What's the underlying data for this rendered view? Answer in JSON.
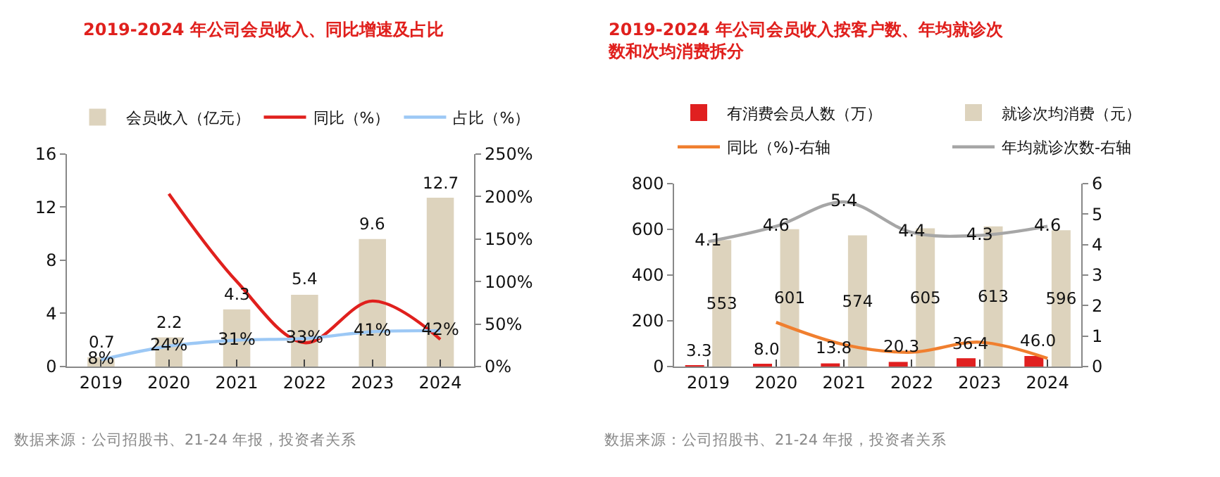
{
  "chart_data": [
    {
      "type": "bar",
      "title": "2019-2024 年公司会员收入、同比增速及占比",
      "categories": [
        "2019",
        "2020",
        "2021",
        "2022",
        "2023",
        "2024"
      ],
      "legend": "top",
      "marker": "none",
      "ylim": [
        0,
        16
      ],
      "yticks": [
        0,
        4,
        8,
        12,
        16
      ],
      "y2lim": [
        0,
        250
      ],
      "y2ticks": [
        {
          "value": 0,
          "label": "0%"
        },
        {
          "value": 50,
          "label": "50%"
        },
        {
          "value": 100,
          "label": "100%"
        },
        {
          "value": 150,
          "label": "150%"
        },
        {
          "value": 200,
          "label": "200%"
        },
        {
          "value": 250,
          "label": "250%"
        }
      ],
      "series": [
        {
          "name": "会员收入（亿元）",
          "color": "#ddd3bd",
          "values": [
            0.7,
            2.2,
            4.3,
            5.4,
            9.6,
            12.7
          ],
          "value_labels": [
            "0.7",
            "2.2",
            "4.3",
            "5.4",
            "9.6",
            "12.7"
          ]
        },
        {
          "name": "同比（%）",
          "type": "line",
          "axis": "y2",
          "color": "#e0201d",
          "values": [
            null,
            203,
            100,
            28,
            77,
            32
          ]
        },
        {
          "name": "占比（%）",
          "type": "line",
          "axis": "y2",
          "color": "#9cc8f5",
          "values": [
            8,
            24,
            31,
            33,
            41,
            42
          ],
          "value_labels": [
            "8%",
            "24%",
            "31%",
            "33%",
            "41%",
            "42%"
          ]
        }
      ],
      "annotations": [
        "数据来源：公司招股书、21-24 年报，投资者关系"
      ]
    },
    {
      "type": "bar",
      "title": "2019-2024 年公司会员收入按客户数、年均就诊次数和次均消费拆分",
      "categories": [
        "2019",
        "2020",
        "2021",
        "2022",
        "2023",
        "2024"
      ],
      "legend": "top",
      "marker": "none",
      "ylim": [
        0,
        800
      ],
      "yticks": [
        0,
        200,
        400,
        600,
        800
      ],
      "y2lim": [
        0,
        6
      ],
      "y2ticks": [
        0,
        1,
        2,
        3,
        4,
        5,
        6
      ],
      "series": [
        {
          "name": "有消费会员人数（万）",
          "color": "#e02020",
          "values": [
            3.3,
            8.0,
            13.8,
            20.3,
            36.4,
            46.0
          ],
          "value_labels": [
            "3.3",
            "8.0",
            "13.8",
            "20.3",
            "36.4",
            "46.0"
          ]
        },
        {
          "name": "就诊次均消费（元）",
          "color": "#ddd3bd",
          "values": [
            553,
            601,
            574,
            605,
            613,
            596
          ],
          "value_labels": [
            "553",
            "601",
            "574",
            "605",
            "613",
            "596"
          ]
        },
        {
          "name": "同比（%)-右轴",
          "type": "line",
          "axis": "y2",
          "color": "#f07f2f",
          "values": [
            null,
            1.45,
            0.72,
            0.47,
            0.8,
            0.27
          ]
        },
        {
          "name": "年均就诊次数-右轴",
          "type": "line",
          "axis": "y2",
          "color": "#a6a6a6",
          "values": [
            4.1,
            4.6,
            5.4,
            4.4,
            4.3,
            4.6
          ],
          "value_labels": [
            "4.1",
            "4.6",
            "5.4",
            "4.4",
            "4.3",
            "4.6"
          ]
        }
      ],
      "annotations": [
        "数据来源：公司招股书、21-24 年报，投资者关系"
      ]
    }
  ]
}
